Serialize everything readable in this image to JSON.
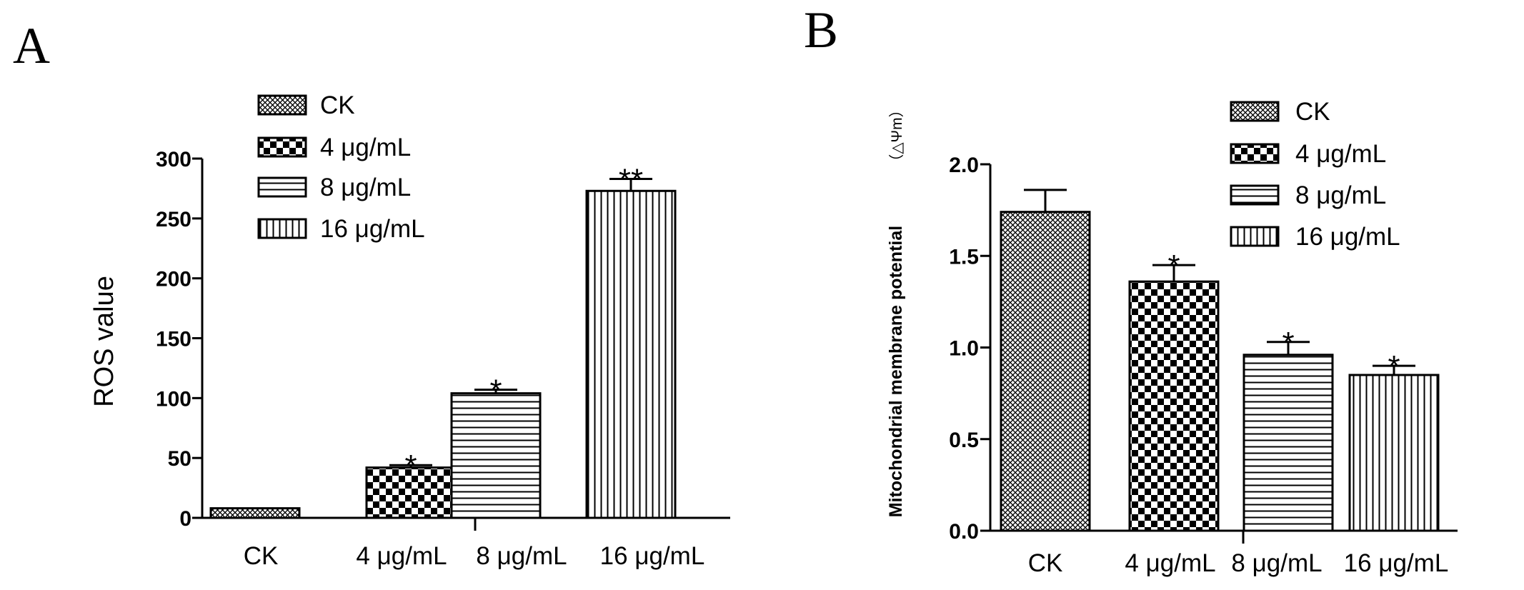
{
  "colors": {
    "ink": "#000000",
    "background": "#ffffff"
  },
  "pattern_names": [
    "diamond-grid",
    "checkerboard",
    "horizontal-lines",
    "vertical-lines"
  ],
  "chart_data": [
    {
      "panel": "A",
      "type": "bar",
      "title": "",
      "xlabel": "",
      "ylabel": "ROS value",
      "ylim": [
        0,
        300
      ],
      "yticks": [
        0,
        50,
        100,
        150,
        200,
        250,
        300
      ],
      "categories": [
        "CK",
        "4 μg/mL",
        "8 μg/mL",
        "16 μg/mL"
      ],
      "values": [
        8,
        42,
        104,
        273
      ],
      "errors": [
        0,
        2,
        3,
        10
      ],
      "significance": [
        "",
        "*",
        "*",
        "**"
      ],
      "legend": [
        "CK",
        "4 μg/mL",
        "8 μg/mL",
        "16 μg/mL"
      ],
      "legend_position": "top-center"
    },
    {
      "panel": "B",
      "type": "bar",
      "title": "",
      "xlabel": "",
      "ylabel": "Mitochondrial membrane potential",
      "ylabel_unit": "（△Ψm）",
      "ylim": [
        0,
        2.0
      ],
      "yticks": [
        "0.0",
        "0.5",
        "1.0",
        "1.5",
        "2.0"
      ],
      "categories": [
        "CK",
        "4 μg/mL",
        "8 μg/mL",
        "16 μg/mL"
      ],
      "values": [
        1.74,
        1.36,
        0.96,
        0.85
      ],
      "errors": [
        0.12,
        0.09,
        0.07,
        0.05
      ],
      "significance": [
        "",
        "*",
        "*",
        "*"
      ],
      "legend": [
        "CK",
        "4 μg/mL",
        "8 μg/mL",
        "16 μg/mL"
      ],
      "legend_position": "top-right"
    }
  ]
}
